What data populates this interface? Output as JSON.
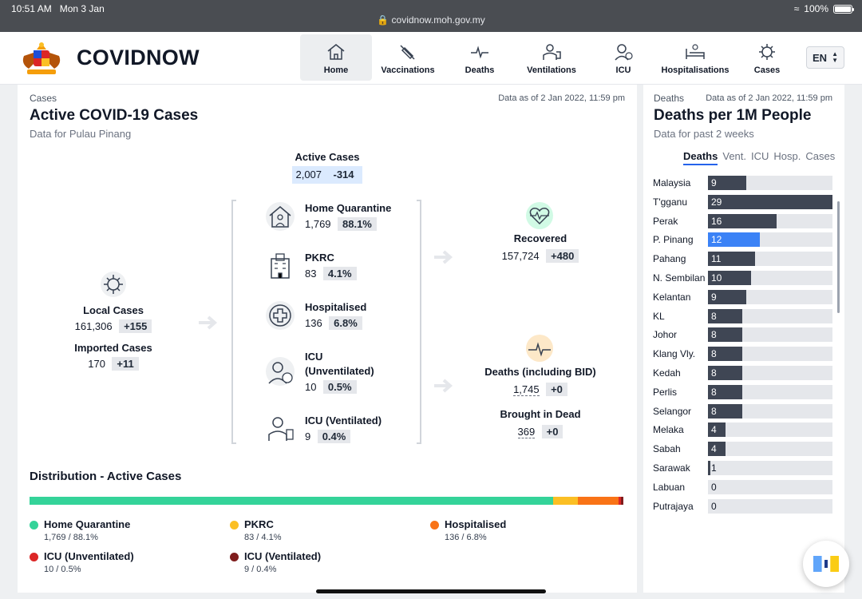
{
  "status": {
    "time": "10:51 AM",
    "date": "Mon 3 Jan",
    "url": "covidnow.moh.gov.my",
    "battery": "100%"
  },
  "header": {
    "brand": "COVIDNOW",
    "nav": [
      "Home",
      "Vaccinations",
      "Deaths",
      "Ventilations",
      "ICU",
      "Hospitalisations",
      "Cases"
    ],
    "active_nav": "Home",
    "language": "EN"
  },
  "cases": {
    "eyebrow": "Cases",
    "as_of": "Data as of 2 Jan 2022, 11:59 pm",
    "title": "Active COVID-19 Cases",
    "subtitle": "Data for Pulau Pinang",
    "active": {
      "label": "Active Cases",
      "value": "2,007",
      "delta": "-314"
    },
    "local": {
      "label": "Local Cases",
      "value": "161,306",
      "delta": "+155"
    },
    "imported": {
      "label": "Imported Cases",
      "value": "170",
      "delta": "+11"
    },
    "home_quarantine": {
      "label": "Home Quarantine",
      "value": "1,769",
      "pct": "88.1%"
    },
    "pkrc": {
      "label": "PKRC",
      "value": "83",
      "pct": "4.1%"
    },
    "hospitalised": {
      "label": "Hospitalised",
      "value": "136",
      "pct": "6.8%"
    },
    "icu_unvent": {
      "label": "ICU (Unventilated)",
      "value": "10",
      "pct": "0.5%"
    },
    "icu_vent": {
      "label": "ICU (Ventilated)",
      "value": "9",
      "pct": "0.4%"
    },
    "recovered": {
      "label": "Recovered",
      "value": "157,724",
      "delta": "+480"
    },
    "deaths": {
      "label": "Deaths (including BID)",
      "value": "1,745",
      "delta": "+0"
    },
    "bid": {
      "label": "Brought in Dead",
      "value": "369",
      "delta": "+0"
    }
  },
  "distribution": {
    "title": "Distribution - Active Cases",
    "segments": [
      {
        "name": "Home Quarantine",
        "share": 88.1,
        "color": "#34d399",
        "stat": "1,769 / 88.1%"
      },
      {
        "name": "PKRC",
        "share": 4.1,
        "color": "#fbbf24",
        "stat": "83 / 4.1%"
      },
      {
        "name": "Hospitalised",
        "share": 6.8,
        "color": "#f97316",
        "stat": "136 / 6.8%"
      },
      {
        "name": "ICU (Unventilated)",
        "share": 0.5,
        "color": "#dc2626",
        "stat": "10 / 0.5%"
      },
      {
        "name": "ICU (Ventilated)",
        "share": 0.4,
        "color": "#7f1d1d",
        "stat": "9 / 0.4%"
      }
    ]
  },
  "deaths_panel": {
    "eyebrow": "Deaths",
    "as_of": "Data as of 2 Jan 2022, 11:59 pm",
    "title": "Deaths per 1M People",
    "subtitle": "Data for past 2 weeks",
    "tabs": [
      "Deaths",
      "Vent.",
      "ICU",
      "Hosp.",
      "Cases"
    ],
    "active_tab": "Deaths",
    "highlight_color": "#3b82f6"
  },
  "chart_data": {
    "type": "bar",
    "orientation": "horizontal",
    "title": "Deaths per 1M People",
    "categories": [
      "Malaysia",
      "T'gganu",
      "Perak",
      "P. Pinang",
      "Pahang",
      "N. Sembilan",
      "Kelantan",
      "KL",
      "Johor",
      "Klang Vly.",
      "Kedah",
      "Perlis",
      "Selangor",
      "Melaka",
      "Sabah",
      "Sarawak",
      "Labuan",
      "Putrajaya"
    ],
    "values": [
      9,
      29,
      16,
      12,
      11,
      10,
      9,
      8,
      8,
      8,
      8,
      8,
      8,
      4,
      4,
      1,
      0,
      0
    ],
    "highlight": "P. Pinang",
    "xlim": [
      0,
      29
    ]
  }
}
